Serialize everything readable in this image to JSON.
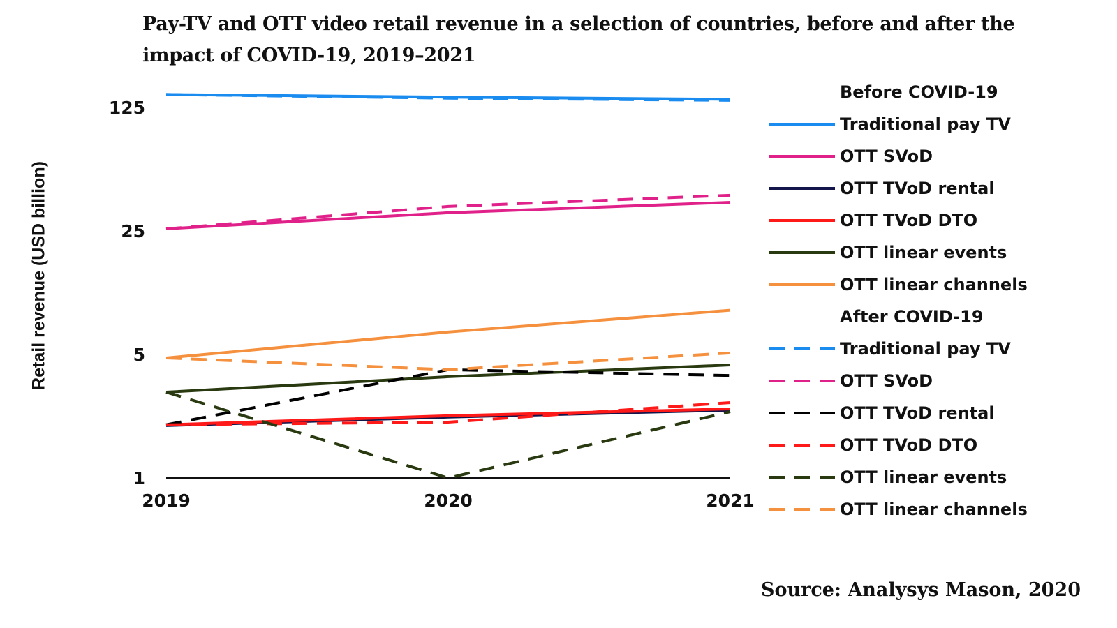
{
  "chart_data": {
    "type": "line",
    "title": "Pay-TV and OTT video retail revenue in a selection of countries, before and after the impact of COVID-19, 2019–2021",
    "xlabel": "",
    "ylabel": "Retail revenue (USD billion)",
    "y_scale": "log",
    "ylim": [
      1,
      150
    ],
    "y_ticks": [
      "1",
      "5",
      "25",
      "125"
    ],
    "x": [
      "2019",
      "2020",
      "2021"
    ],
    "grid": false,
    "legend_position": "right",
    "legend_groups": [
      "Before COVID-19",
      "After COVID-19"
    ],
    "series": [
      {
        "name": "Traditional pay TV",
        "group": "Before COVID-19",
        "color": "#1a8cf0",
        "style": "solid",
        "values": [
          148,
          143,
          139
        ]
      },
      {
        "name": "OTT SVoD",
        "group": "Before COVID-19",
        "color": "#e0218a",
        "style": "solid",
        "values": [
          25.7,
          31.7,
          36.3
        ]
      },
      {
        "name": "OTT TVoD rental",
        "group": "Before COVID-19",
        "color": "#14154a",
        "style": "solid",
        "values": [
          1.98,
          2.21,
          2.42
        ]
      },
      {
        "name": "OTT TVoD DTO",
        "group": "Before COVID-19",
        "color": "#ff1a1a",
        "style": "solid",
        "values": [
          2.0,
          2.25,
          2.46
        ]
      },
      {
        "name": "OTT linear events",
        "group": "Before COVID-19",
        "color": "#2a3a10",
        "style": "solid",
        "values": [
          3.06,
          3.74,
          4.36
        ]
      },
      {
        "name": "OTT linear channels",
        "group": "Before COVID-19",
        "color": "#f5913e",
        "style": "solid",
        "values": [
          4.78,
          6.7,
          8.9
        ]
      },
      {
        "name": "Traditional pay TV",
        "group": "After COVID-19",
        "color": "#1a8cf0",
        "style": "dashed",
        "values": [
          148,
          141,
          137
        ]
      },
      {
        "name": "OTT SVoD",
        "group": "After COVID-19",
        "color": "#e0218a",
        "style": "dashed",
        "values": [
          25.7,
          34.4,
          39.8
        ]
      },
      {
        "name": "OTT TVoD rental",
        "group": "After COVID-19",
        "color": "#000000",
        "style": "dashed",
        "values": [
          2.0,
          4.1,
          3.8
        ]
      },
      {
        "name": "OTT TVoD DTO",
        "group": "After COVID-19",
        "color": "#ff1a1a",
        "style": "dashed",
        "values": [
          2.0,
          2.07,
          2.67
        ]
      },
      {
        "name": "OTT linear events",
        "group": "After COVID-19",
        "color": "#2a3a10",
        "style": "dashed",
        "values": [
          3.06,
          1.0,
          2.37
        ]
      },
      {
        "name": "OTT linear channels",
        "group": "After COVID-19",
        "color": "#f5913e",
        "style": "dashed",
        "values": [
          4.78,
          4.1,
          5.1
        ]
      }
    ],
    "source": "Source: Analysys Mason, 2020"
  }
}
